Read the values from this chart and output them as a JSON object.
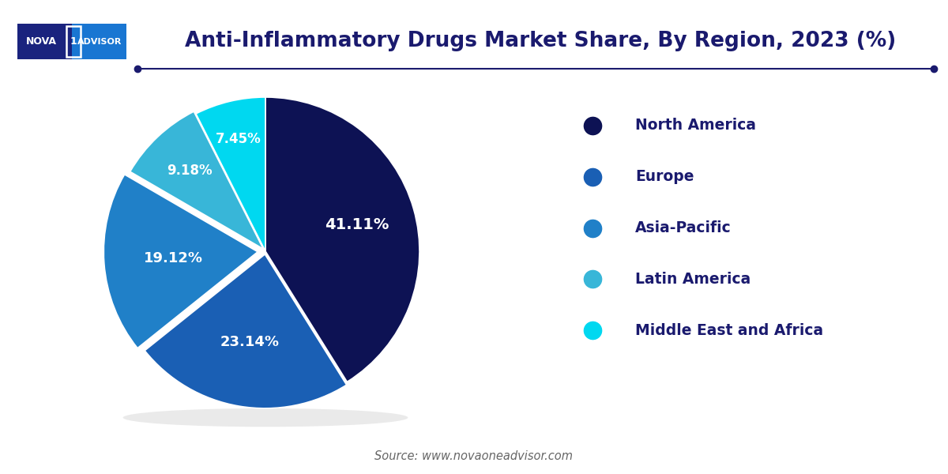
{
  "title": "Anti-Inflammatory Drugs Market Share, By Region, 2023 (%)",
  "title_color": "#1a1a6e",
  "title_fontsize": 19,
  "source_text": "Source: www.novaoneadvisor.com",
  "labels": [
    "North America",
    "Europe",
    "Asia-Pacific",
    "Latin America",
    "Middle East and Africa"
  ],
  "values": [
    41.11,
    23.14,
    19.12,
    9.18,
    7.45
  ],
  "colors": [
    "#0d1254",
    "#1a5fb4",
    "#2080c8",
    "#38b6d8",
    "#00d8f0"
  ],
  "pct_labels": [
    "41.11%",
    "23.14%",
    "19.12%",
    "9.18%",
    "7.45%"
  ],
  "pct_label_color": "#ffffff",
  "legend_text_color": "#1a1a6e",
  "background_color": "#ffffff",
  "explode": [
    0.0,
    0.02,
    0.05,
    0.02,
    0.0
  ],
  "startangle": 90,
  "logo_dark": "#1a237e",
  "logo_light": "#1976d2",
  "line_color": "#1a1a6e",
  "source_color": "#666666"
}
